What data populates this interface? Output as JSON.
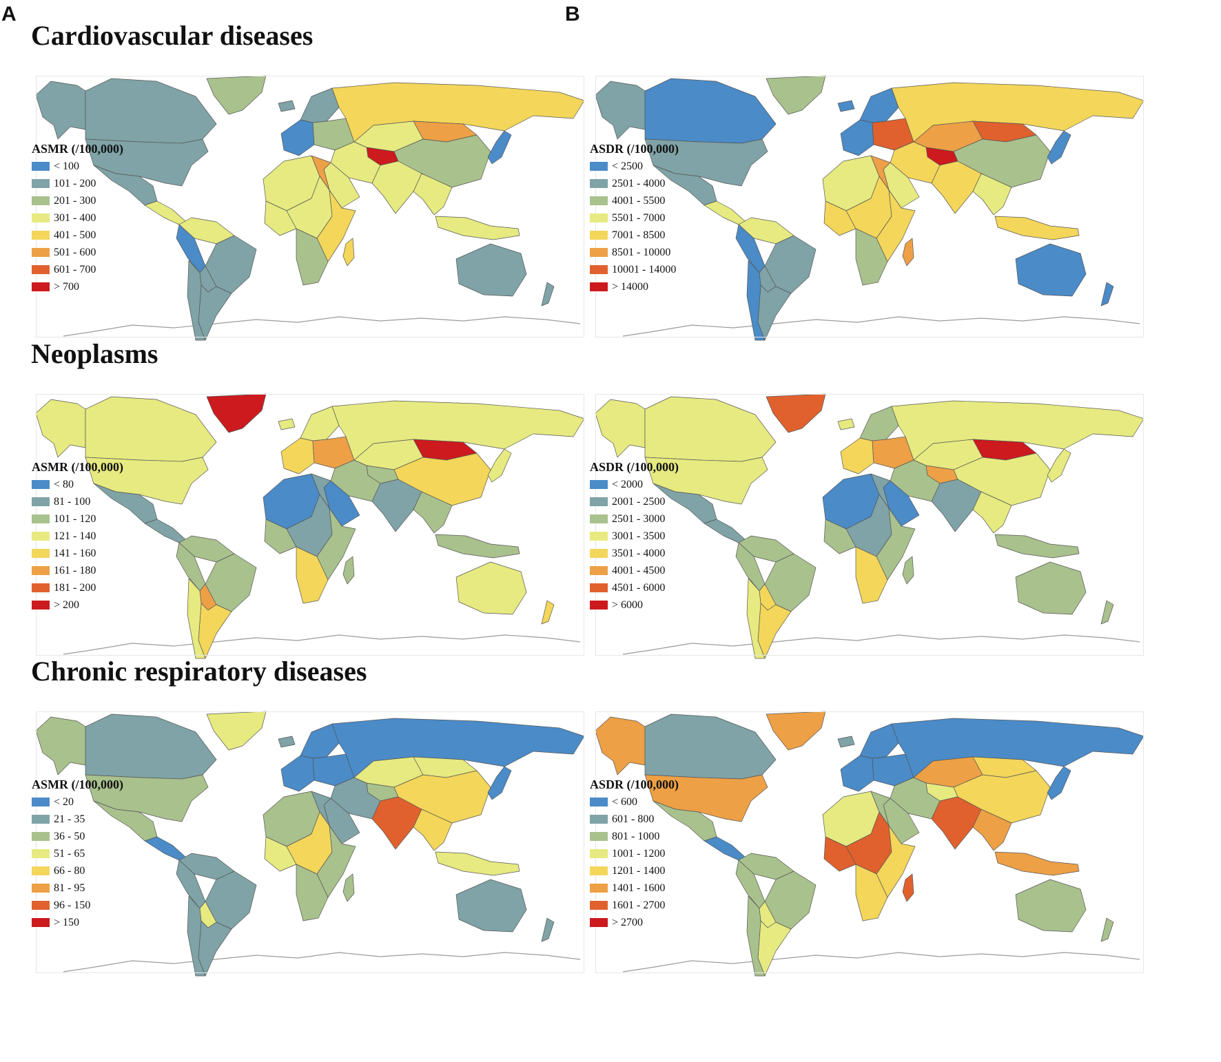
{
  "panel_letters": [
    "A",
    "B"
  ],
  "palette": {
    "ocean": "#ffffff",
    "border": "#555555",
    "bins": [
      "#4a8bc8",
      "#7fa3a7",
      "#a9c18d",
      "#e6ea80",
      "#f3d65a",
      "#eda046",
      "#e0612d",
      "#cc1a1e"
    ]
  },
  "sections": [
    {
      "title": "Cardiovascular diseases",
      "maps": [
        {
          "legend": {
            "title": "ASMR (/100,000)",
            "items": [
              "< 100",
              "101 - 200",
              "201 - 300",
              "301 - 400",
              "401 - 500",
              "501 - 600",
              "601 - 700",
              "> 700"
            ]
          },
          "colors": {
            "canada": 1,
            "alaska": 1,
            "usa": 1,
            "mexico": 1,
            "central-america": 3,
            "greenland": 2,
            "south-america-north": 3,
            "brazil": 1,
            "peru": 0,
            "bolivia": 1,
            "argentina": 1,
            "chile": 1,
            "iceland": 1,
            "western-europe": 0,
            "scandinavia": 1,
            "eastern-europe": 2,
            "russia": 4,
            "kazakhstan": 3,
            "central-asia": 7,
            "mongolia": 5,
            "china": 2,
            "middle-east": 3,
            "arabia": 3,
            "india": 3,
            "southeast-asia": 3,
            "japan": 0,
            "north-africa": 3,
            "egypt": 5,
            "west-africa": 3,
            "central-africa": 3,
            "east-africa": 4,
            "southern-africa": 2,
            "madagascar": 4,
            "indonesia": 3,
            "australia": 1,
            "new-zealand": 1
          }
        },
        {
          "legend": {
            "title": "ASDR (/100,000)",
            "items": [
              "< 2500",
              "2501 - 4000",
              "4001 - 5500",
              "5501 - 7000",
              "7001 - 8500",
              "8501 - 10000",
              "10001 - 14000",
              "> 14000"
            ]
          },
          "colors": {
            "canada": 0,
            "alaska": 1,
            "usa": 1,
            "mexico": 1,
            "central-america": 3,
            "greenland": 2,
            "south-america-north": 3,
            "brazil": 1,
            "peru": 0,
            "bolivia": 1,
            "argentina": 1,
            "chile": 0,
            "iceland": 0,
            "western-europe": 0,
            "scandinavia": 0,
            "eastern-europe": 6,
            "russia": 4,
            "kazakhstan": 5,
            "central-asia": 7,
            "mongolia": 6,
            "china": 2,
            "middle-east": 4,
            "arabia": 3,
            "india": 4,
            "southeast-asia": 3,
            "japan": 0,
            "north-africa": 3,
            "egypt": 5,
            "west-africa": 4,
            "central-africa": 4,
            "east-africa": 4,
            "southern-africa": 2,
            "madagascar": 5,
            "indonesia": 4,
            "australia": 0,
            "new-zealand": 0
          }
        }
      ]
    },
    {
      "title": "Neoplasms",
      "maps": [
        {
          "legend": {
            "title": "ASMR (/100,000)",
            "items": [
              "< 80",
              "81 - 100",
              "101 - 120",
              "121 - 140",
              "141 - 160",
              "161 - 180",
              "181 - 200",
              "> 200"
            ]
          },
          "colors": {
            "canada": 3,
            "alaska": 3,
            "usa": 3,
            "mexico": 1,
            "central-america": 1,
            "greenland": 7,
            "south-america-north": 2,
            "brazil": 2,
            "peru": 2,
            "bolivia": 5,
            "argentina": 4,
            "chile": 3,
            "iceland": 3,
            "western-europe": 4,
            "scandinavia": 3,
            "eastern-europe": 5,
            "russia": 3,
            "kazakhstan": 3,
            "central-asia": 2,
            "mongolia": 7,
            "china": 4,
            "middle-east": 2,
            "arabia": 0,
            "india": 1,
            "southeast-asia": 2,
            "japan": 3,
            "north-africa": 0,
            "egypt": 1,
            "west-africa": 2,
            "central-africa": 1,
            "east-africa": 2,
            "southern-africa": 4,
            "madagascar": 2,
            "indonesia": 2,
            "australia": 3,
            "new-zealand": 4
          }
        },
        {
          "legend": {
            "title": "ASDR (/100,000)",
            "items": [
              "< 2000",
              "2001 - 2500",
              "2501 - 3000",
              "3001 - 3500",
              "3501 - 4000",
              "4001 - 4500",
              "4501 - 6000",
              "> 6000"
            ]
          },
          "colors": {
            "canada": 3,
            "alaska": 3,
            "usa": 3,
            "mexico": 1,
            "central-america": 1,
            "greenland": 6,
            "south-america-north": 2,
            "brazil": 2,
            "peru": 2,
            "bolivia": 4,
            "argentina": 4,
            "chile": 3,
            "iceland": 3,
            "western-europe": 4,
            "scandinavia": 2,
            "eastern-europe": 5,
            "russia": 3,
            "kazakhstan": 3,
            "central-asia": 5,
            "mongolia": 7,
            "china": 3,
            "middle-east": 2,
            "arabia": 0,
            "india": 1,
            "southeast-asia": 3,
            "japan": 3,
            "north-africa": 0,
            "egypt": 1,
            "west-africa": 2,
            "central-africa": 1,
            "east-africa": 2,
            "southern-africa": 4,
            "madagascar": 2,
            "indonesia": 2,
            "australia": 2,
            "new-zealand": 2
          }
        }
      ]
    },
    {
      "title": "Chronic respiratory diseases",
      "maps": [
        {
          "legend": {
            "title": "ASMR (/100,000)",
            "items": [
              "< 20",
              "21 - 35",
              "36 - 50",
              "51 - 65",
              "66 - 80",
              "81 - 95",
              "96 - 150",
              "> 150"
            ]
          },
          "colors": {
            "canada": 1,
            "alaska": 2,
            "usa": 2,
            "mexico": 2,
            "central-america": 0,
            "greenland": 3,
            "south-america-north": 1,
            "brazil": 1,
            "peru": 1,
            "bolivia": 3,
            "argentina": 1,
            "chile": 1,
            "iceland": 1,
            "western-europe": 0,
            "scandinavia": 0,
            "eastern-europe": 0,
            "russia": 0,
            "kazakhstan": 3,
            "central-asia": 2,
            "mongolia": 3,
            "china": 4,
            "middle-east": 1,
            "arabia": 1,
            "india": 6,
            "southeast-asia": 4,
            "japan": 0,
            "north-africa": 2,
            "egypt": 1,
            "west-africa": 3,
            "central-africa": 4,
            "east-africa": 2,
            "southern-africa": 2,
            "madagascar": 2,
            "indonesia": 3,
            "australia": 1,
            "new-zealand": 1
          }
        },
        {
          "legend": {
            "title": "ASDR (/100,000)",
            "items": [
              "< 600",
              "601 - 800",
              "801 - 1000",
              "1001 - 1200",
              "1201 - 1400",
              "1401 - 1600",
              "1601 - 2700",
              "> 2700"
            ]
          },
          "colors": {
            "canada": 1,
            "alaska": 5,
            "usa": 5,
            "mexico": 2,
            "central-america": 0,
            "greenland": 5,
            "south-america-north": 2,
            "brazil": 2,
            "peru": 2,
            "bolivia": 3,
            "argentina": 3,
            "chile": 2,
            "iceland": 1,
            "western-europe": 0,
            "scandinavia": 0,
            "eastern-europe": 0,
            "russia": 0,
            "kazakhstan": 5,
            "central-asia": 3,
            "mongolia": 4,
            "china": 4,
            "middle-east": 2,
            "arabia": 2,
            "india": 6,
            "southeast-asia": 5,
            "japan": 0,
            "north-africa": 3,
            "egypt": 2,
            "west-africa": 6,
            "central-africa": 6,
            "east-africa": 4,
            "southern-africa": 4,
            "madagascar": 6,
            "indonesia": 5,
            "australia": 2,
            "new-zealand": 2
          }
        }
      ]
    }
  ]
}
